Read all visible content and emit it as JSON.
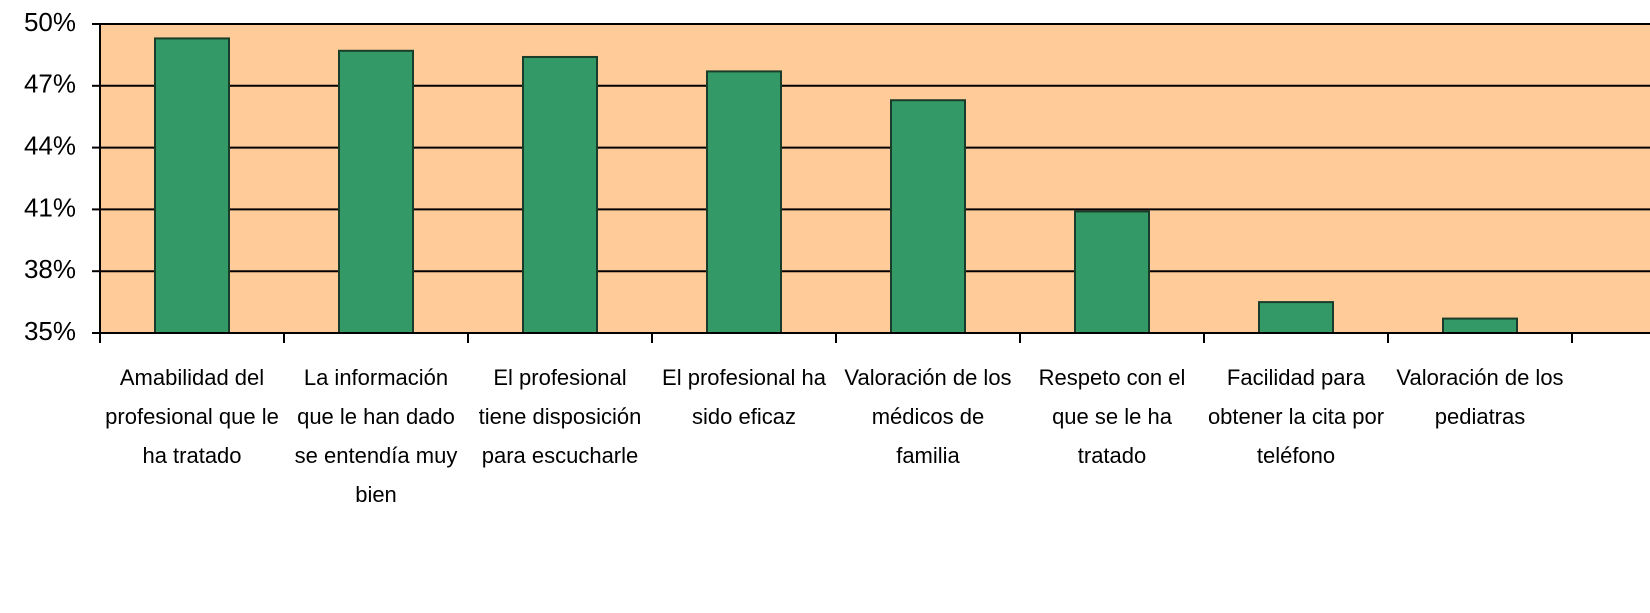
{
  "chart_data": {
    "type": "bar",
    "categories": [
      "Amabilidad del profesional que le ha tratado",
      "La información que le han dado se entendía muy bien",
      "El profesional tiene disposición para escucharle",
      "El profesional ha sido eficaz",
      "Valoración de los médicos de familia",
      "Respeto con el que se le ha tratado",
      "Facilidad para obtener la cita por teléfono",
      "Valoración de los pediatras"
    ],
    "values": [
      49.3,
      48.7,
      48.4,
      47.7,
      46.3,
      40.9,
      36.5,
      35.7
    ],
    "color": "#339966",
    "ylim": [
      35,
      50
    ],
    "yticks": [
      {
        "value": 35,
        "label": "35%"
      },
      {
        "value": 38,
        "label": "38%"
      },
      {
        "value": 41,
        "label": "41%"
      },
      {
        "value": 44,
        "label": "44%"
      },
      {
        "value": 47,
        "label": "47%"
      },
      {
        "value": 50,
        "label": "50%"
      }
    ],
    "grid": true
  }
}
